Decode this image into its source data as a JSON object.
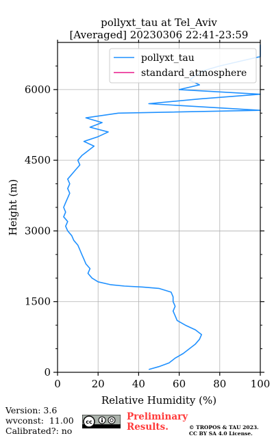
{
  "chart_data": {
    "type": "line",
    "title": "pollyxt_tau at Tel_Aviv",
    "subtitle": "[Averaged] 20230306 22:41-23:59",
    "xlabel": "Relative Humidity (%)",
    "ylabel": "Height (m)",
    "xlim": [
      0,
      100
    ],
    "ylim": [
      0,
      7000
    ],
    "x_ticks": [
      0,
      20,
      40,
      60,
      80,
      100
    ],
    "y_ticks": [
      0,
      1500,
      3000,
      4500,
      6000
    ],
    "grid": true,
    "legend_position": "top-right",
    "series": [
      {
        "name": "pollyxt_tau",
        "color": "#1e90ff",
        "points": [
          [
            45,
            60
          ],
          [
            50,
            120
          ],
          [
            55,
            200
          ],
          [
            58,
            300
          ],
          [
            62,
            400
          ],
          [
            65,
            500
          ],
          [
            68,
            600
          ],
          [
            70,
            700
          ],
          [
            71,
            800
          ],
          [
            68,
            900
          ],
          [
            63,
            1000
          ],
          [
            59,
            1100
          ],
          [
            58,
            1200
          ],
          [
            57,
            1300
          ],
          [
            58,
            1400
          ],
          [
            57,
            1500
          ],
          [
            57,
            1600
          ],
          [
            56,
            1700
          ],
          [
            50,
            1780
          ],
          [
            42,
            1810
          ],
          [
            33,
            1830
          ],
          [
            26,
            1860
          ],
          [
            20,
            1920
          ],
          [
            17,
            2000
          ],
          [
            15,
            2100
          ],
          [
            16,
            2200
          ],
          [
            14,
            2300
          ],
          [
            13,
            2400
          ],
          [
            12,
            2500
          ],
          [
            11,
            2600
          ],
          [
            10,
            2700
          ],
          [
            8,
            2800
          ],
          [
            7,
            2900
          ],
          [
            5,
            3000
          ],
          [
            4,
            3100
          ],
          [
            5,
            3200
          ],
          [
            3,
            3300
          ],
          [
            4,
            3400
          ],
          [
            3,
            3500
          ],
          [
            4,
            3600
          ],
          [
            5,
            3700
          ],
          [
            6,
            3800
          ],
          [
            5,
            3900
          ],
          [
            6,
            4000
          ],
          [
            5,
            4100
          ],
          [
            7,
            4200
          ],
          [
            9,
            4300
          ],
          [
            11,
            4400
          ],
          [
            10,
            4500
          ],
          [
            12,
            4600
          ],
          [
            15,
            4700
          ],
          [
            18,
            4800
          ],
          [
            13,
            4900
          ],
          [
            20,
            5000
          ],
          [
            25,
            5100
          ],
          [
            16,
            5200
          ],
          [
            22,
            5300
          ],
          [
            14,
            5400
          ],
          [
            30,
            5500
          ],
          [
            100,
            5560
          ],
          [
            45,
            5700
          ],
          [
            70,
            5800
          ],
          [
            100,
            5900
          ],
          [
            60,
            6000
          ],
          [
            70,
            6100
          ],
          [
            65,
            6200
          ],
          [
            68,
            6300
          ],
          [
            72,
            6400
          ],
          [
            80,
            6500
          ],
          [
            90,
            6600
          ],
          [
            100,
            6700
          ],
          [
            100,
            6800
          ],
          [
            100,
            6900
          ],
          [
            100,
            6950
          ]
        ]
      },
      {
        "name": "standard_atmosphere",
        "color": "#e8198c",
        "points": []
      }
    ]
  },
  "footer": {
    "version": "Version: 3.6",
    "wvconst": "wvconst:  11.00",
    "calibrated": "Calibrated?: no",
    "preliminary_line1": "Preliminary",
    "preliminary_line2": "Results.",
    "license_line1": "© TROPOS & TAU 2023.",
    "license_line2": "CC BY SA 4.0 License.",
    "cc_logo_text": "cc"
  }
}
